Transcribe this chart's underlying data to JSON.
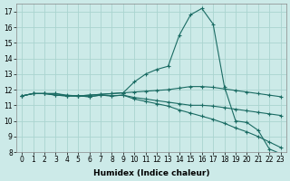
{
  "title": "",
  "xlabel": "Humidex (Indice chaleur)",
  "background_color": "#cceae8",
  "grid_color": "#aad4d0",
  "line_color": "#1a6b63",
  "x_values": [
    0,
    1,
    2,
    3,
    4,
    5,
    6,
    7,
    8,
    9,
    10,
    11,
    12,
    13,
    14,
    15,
    16,
    17,
    18,
    19,
    20,
    21,
    22,
    23
  ],
  "line_main": [
    11.6,
    11.75,
    11.75,
    11.75,
    11.6,
    11.6,
    11.65,
    11.7,
    11.75,
    11.8,
    12.5,
    13.0,
    13.3,
    13.5,
    15.5,
    16.8,
    17.2,
    16.2,
    12.2,
    10.0,
    9.9,
    9.4,
    8.2,
    7.9
  ],
  "line_upper": [
    11.6,
    11.75,
    11.75,
    11.75,
    11.65,
    11.6,
    11.65,
    11.7,
    11.75,
    11.8,
    11.85,
    11.9,
    11.95,
    12.0,
    12.1,
    12.2,
    12.2,
    12.15,
    12.05,
    11.95,
    11.85,
    11.75,
    11.65,
    11.55
  ],
  "line_mid": [
    11.6,
    11.75,
    11.75,
    11.65,
    11.6,
    11.6,
    11.55,
    11.65,
    11.6,
    11.65,
    11.5,
    11.4,
    11.3,
    11.2,
    11.1,
    11.0,
    11.0,
    10.95,
    10.85,
    10.75,
    10.65,
    10.55,
    10.45,
    10.35
  ],
  "line_lower": [
    11.6,
    11.75,
    11.75,
    11.65,
    11.6,
    11.6,
    11.55,
    11.65,
    11.6,
    11.65,
    11.4,
    11.25,
    11.1,
    10.95,
    10.7,
    10.5,
    10.3,
    10.1,
    9.85,
    9.55,
    9.3,
    9.0,
    8.65,
    8.3
  ],
  "ylim": [
    8,
    17.5
  ],
  "xlim": [
    -0.5,
    23.5
  ],
  "yticks": [
    8,
    9,
    10,
    11,
    12,
    13,
    14,
    15,
    16,
    17
  ],
  "xticks": [
    0,
    1,
    2,
    3,
    4,
    5,
    6,
    7,
    8,
    9,
    10,
    11,
    12,
    13,
    14,
    15,
    16,
    17,
    18,
    19,
    20,
    21,
    22,
    23
  ],
  "tick_fontsize": 5.5,
  "xlabel_fontsize": 6.5
}
